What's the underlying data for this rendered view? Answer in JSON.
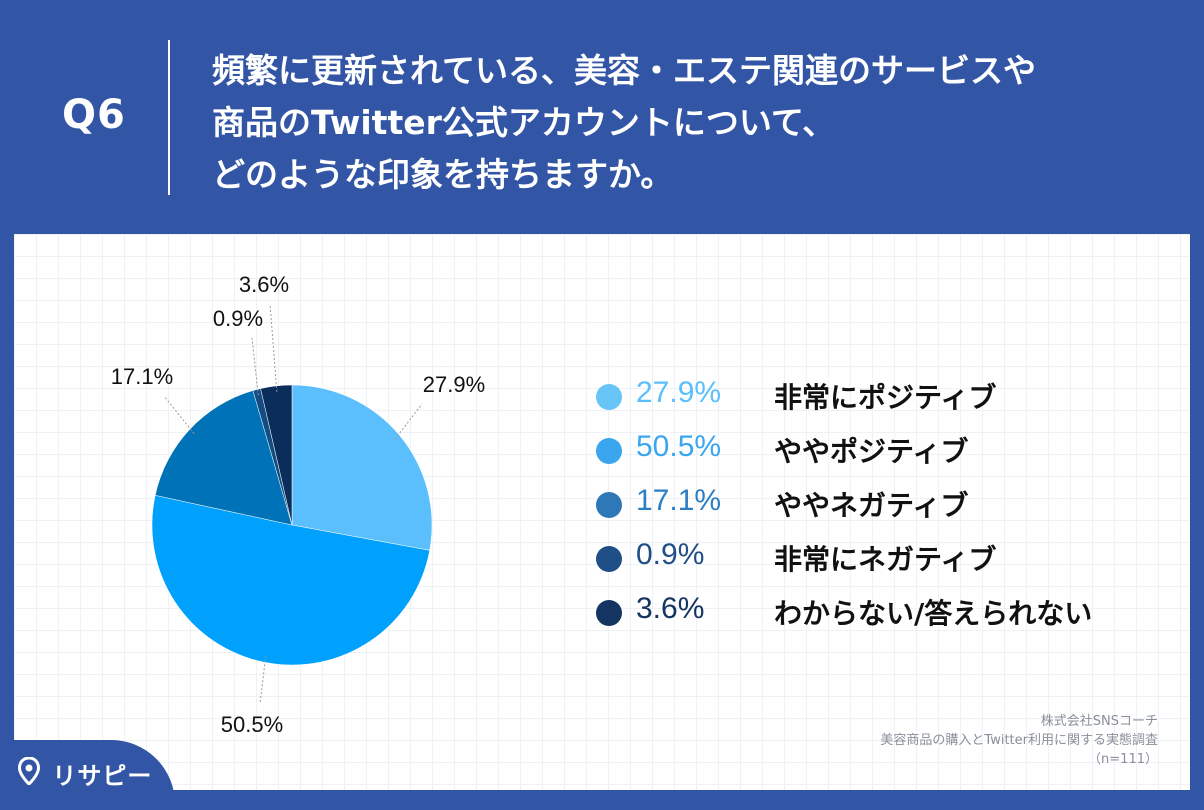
{
  "header": {
    "qnum": "Q6",
    "question_lines": [
      "頻繁に更新されている、美容・エステ関連のサービスや",
      "商品のTwitter公式アカウントについて、",
      "どのような印象を持ちますか。"
    ]
  },
  "chart_data": {
    "type": "pie",
    "title": "",
    "unit": "%",
    "slices": [
      {
        "label": "非常にポジティブ",
        "value": 27.9,
        "display": "27.9%",
        "color": "#5bbffd"
      },
      {
        "label": "ややポジティブ",
        "value": 50.5,
        "display": "50.5%",
        "color": "#00a0fd"
      },
      {
        "label": "ややネガティブ",
        "value": 17.1,
        "display": "17.1%",
        "color": "#0073b8"
      },
      {
        "label": "非常にネガティブ",
        "value": 0.9,
        "display": "0.9%",
        "color": "#134d82"
      },
      {
        "label": "わからない/答えられない",
        "value": 3.6,
        "display": "3.6%",
        "color": "#0b2d5b"
      }
    ],
    "legend_placement": "right"
  },
  "legend_colors": {
    "pct_text": [
      "#5bbffd",
      "#3aa6ef",
      "#2b7ec4",
      "#1f4f86",
      "#143462"
    ],
    "dots": [
      "#66c4f7",
      "#3aa6ef",
      "#2e78b8",
      "#1f4f86",
      "#143462"
    ]
  },
  "source": {
    "line1": "株式会社SNSコーチ",
    "line2": "美容商品の購入とTwitter利用に関する実態調査",
    "line3": "（n=111）"
  },
  "logo": {
    "text": "リサピー",
    "icon": "pin-icon"
  }
}
